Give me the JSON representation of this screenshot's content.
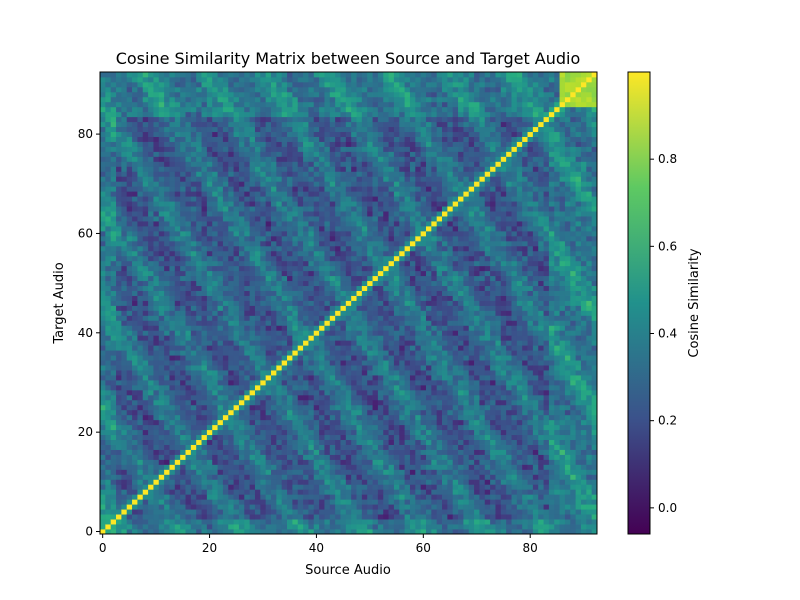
{
  "chart_data": {
    "type": "heatmap",
    "title": "Cosine Similarity Matrix between Source and Target Audio",
    "xlabel": "Source Audio",
    "ylabel": "Target Audio",
    "colorbar_label": "Cosine Similarity",
    "n": 93,
    "xlim": [
      -0.5,
      92.5
    ],
    "ylim": [
      -0.5,
      92.5
    ],
    "xticks": [
      0,
      20,
      40,
      60,
      80
    ],
    "yticks": [
      0,
      20,
      40,
      60,
      80
    ],
    "value_range": [
      -0.06,
      1.0
    ],
    "colorbar_ticks": [
      0.0,
      0.2,
      0.4,
      0.6,
      0.8
    ],
    "colorbar_tick_labels": [
      "0.0",
      "0.2",
      "0.4",
      "0.6",
      "0.8"
    ],
    "diagonal_value": 1.0,
    "typical_off_diagonal_range": [
      0.05,
      0.6
    ],
    "high_similarity_blocks": [
      {
        "x_range": [
          86,
          92
        ],
        "y_range": [
          86,
          92
        ],
        "value": 0.9
      }
    ],
    "colormap": "viridis"
  }
}
